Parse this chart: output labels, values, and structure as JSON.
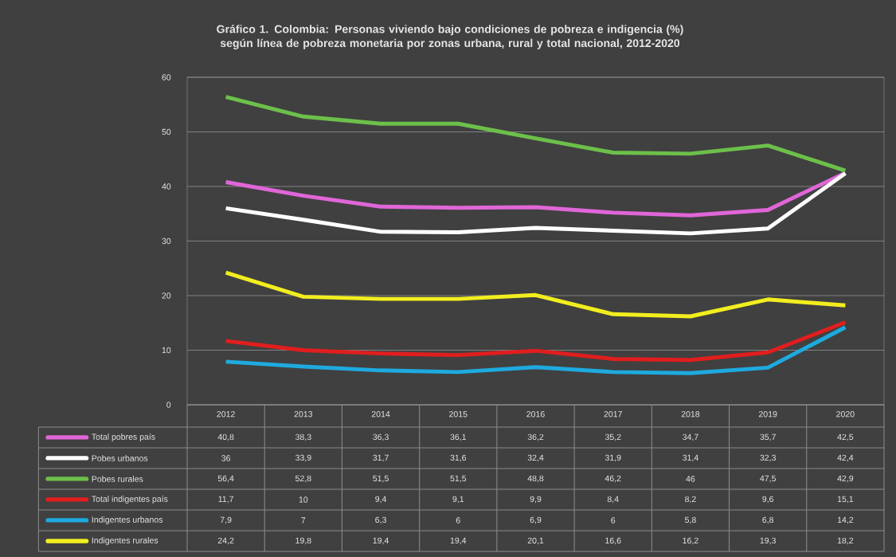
{
  "chart_data": {
    "type": "line",
    "title": "Gráfico 1. Colombia: Personas viviendo bajo condiciones de pobreza e indigencia (%) según línea de pobreza monetaria por zonas urbana, rural y total nacional, 2012-2020",
    "categories": [
      "2012",
      "2013",
      "2014",
      "2015",
      "2016",
      "2017",
      "2018",
      "2019",
      "2020"
    ],
    "ylim": [
      0,
      60
    ],
    "yticks": [
      0,
      10,
      20,
      30,
      40,
      50,
      60
    ],
    "grid": "y",
    "legend": "bottom",
    "series": [
      {
        "name": "Total pobres país",
        "color": "#e066d8",
        "values": [
          40.8,
          38.3,
          36.3,
          36.1,
          36.2,
          35.2,
          34.7,
          35.7,
          42.5
        ],
        "value_labels": [
          "40,8",
          "38,3",
          "36,3",
          "36,1",
          "36,2",
          "35,2",
          "34,7",
          "35,7",
          "42,5"
        ]
      },
      {
        "name": "Pobes urbanos",
        "color": "#ffffff",
        "values": [
          36,
          33.9,
          31.7,
          31.6,
          32.4,
          31.9,
          31.4,
          32.3,
          42.4
        ],
        "value_labels": [
          "36",
          "33,9",
          "31,7",
          "31,6",
          "32,4",
          "31,9",
          "31,4",
          "32,3",
          "42,4"
        ]
      },
      {
        "name": "Pobes rurales",
        "color": "#6cc04a",
        "values": [
          56.4,
          52.8,
          51.5,
          51.5,
          48.8,
          46.2,
          46,
          47.5,
          42.9
        ],
        "value_labels": [
          "56,4",
          "52,8",
          "51,5",
          "51,5",
          "48,8",
          "46,2",
          "46",
          "47,5",
          "42,9"
        ]
      },
      {
        "name": "Total indigentes país",
        "color": "#e01e1e",
        "values": [
          11.7,
          10,
          9.4,
          9.1,
          9.9,
          8.4,
          8.2,
          9.6,
          15.1
        ],
        "value_labels": [
          "11,7",
          "10",
          "9,4",
          "9,1",
          "9,9",
          "8,4",
          "8,2",
          "9,6",
          "15,1"
        ]
      },
      {
        "name": "Indigentes urbanos",
        "color": "#1eaadf",
        "values": [
          7.9,
          7,
          6.3,
          6,
          6.9,
          6,
          5.8,
          6.8,
          14.2
        ],
        "value_labels": [
          "7,9",
          "7",
          "6,3",
          "6",
          "6,9",
          "6",
          "5,8",
          "6,8",
          "14,2"
        ]
      },
      {
        "name": "Indigentes rurales",
        "color": "#f2ee1e",
        "values": [
          24.2,
          19.8,
          19.4,
          19.4,
          20.1,
          16.6,
          16.2,
          19.3,
          18.2
        ],
        "value_labels": [
          "24,2",
          "19,8",
          "19,4",
          "19,4",
          "20,1",
          "16,6",
          "16,2",
          "19,3",
          "18,2"
        ]
      }
    ]
  }
}
